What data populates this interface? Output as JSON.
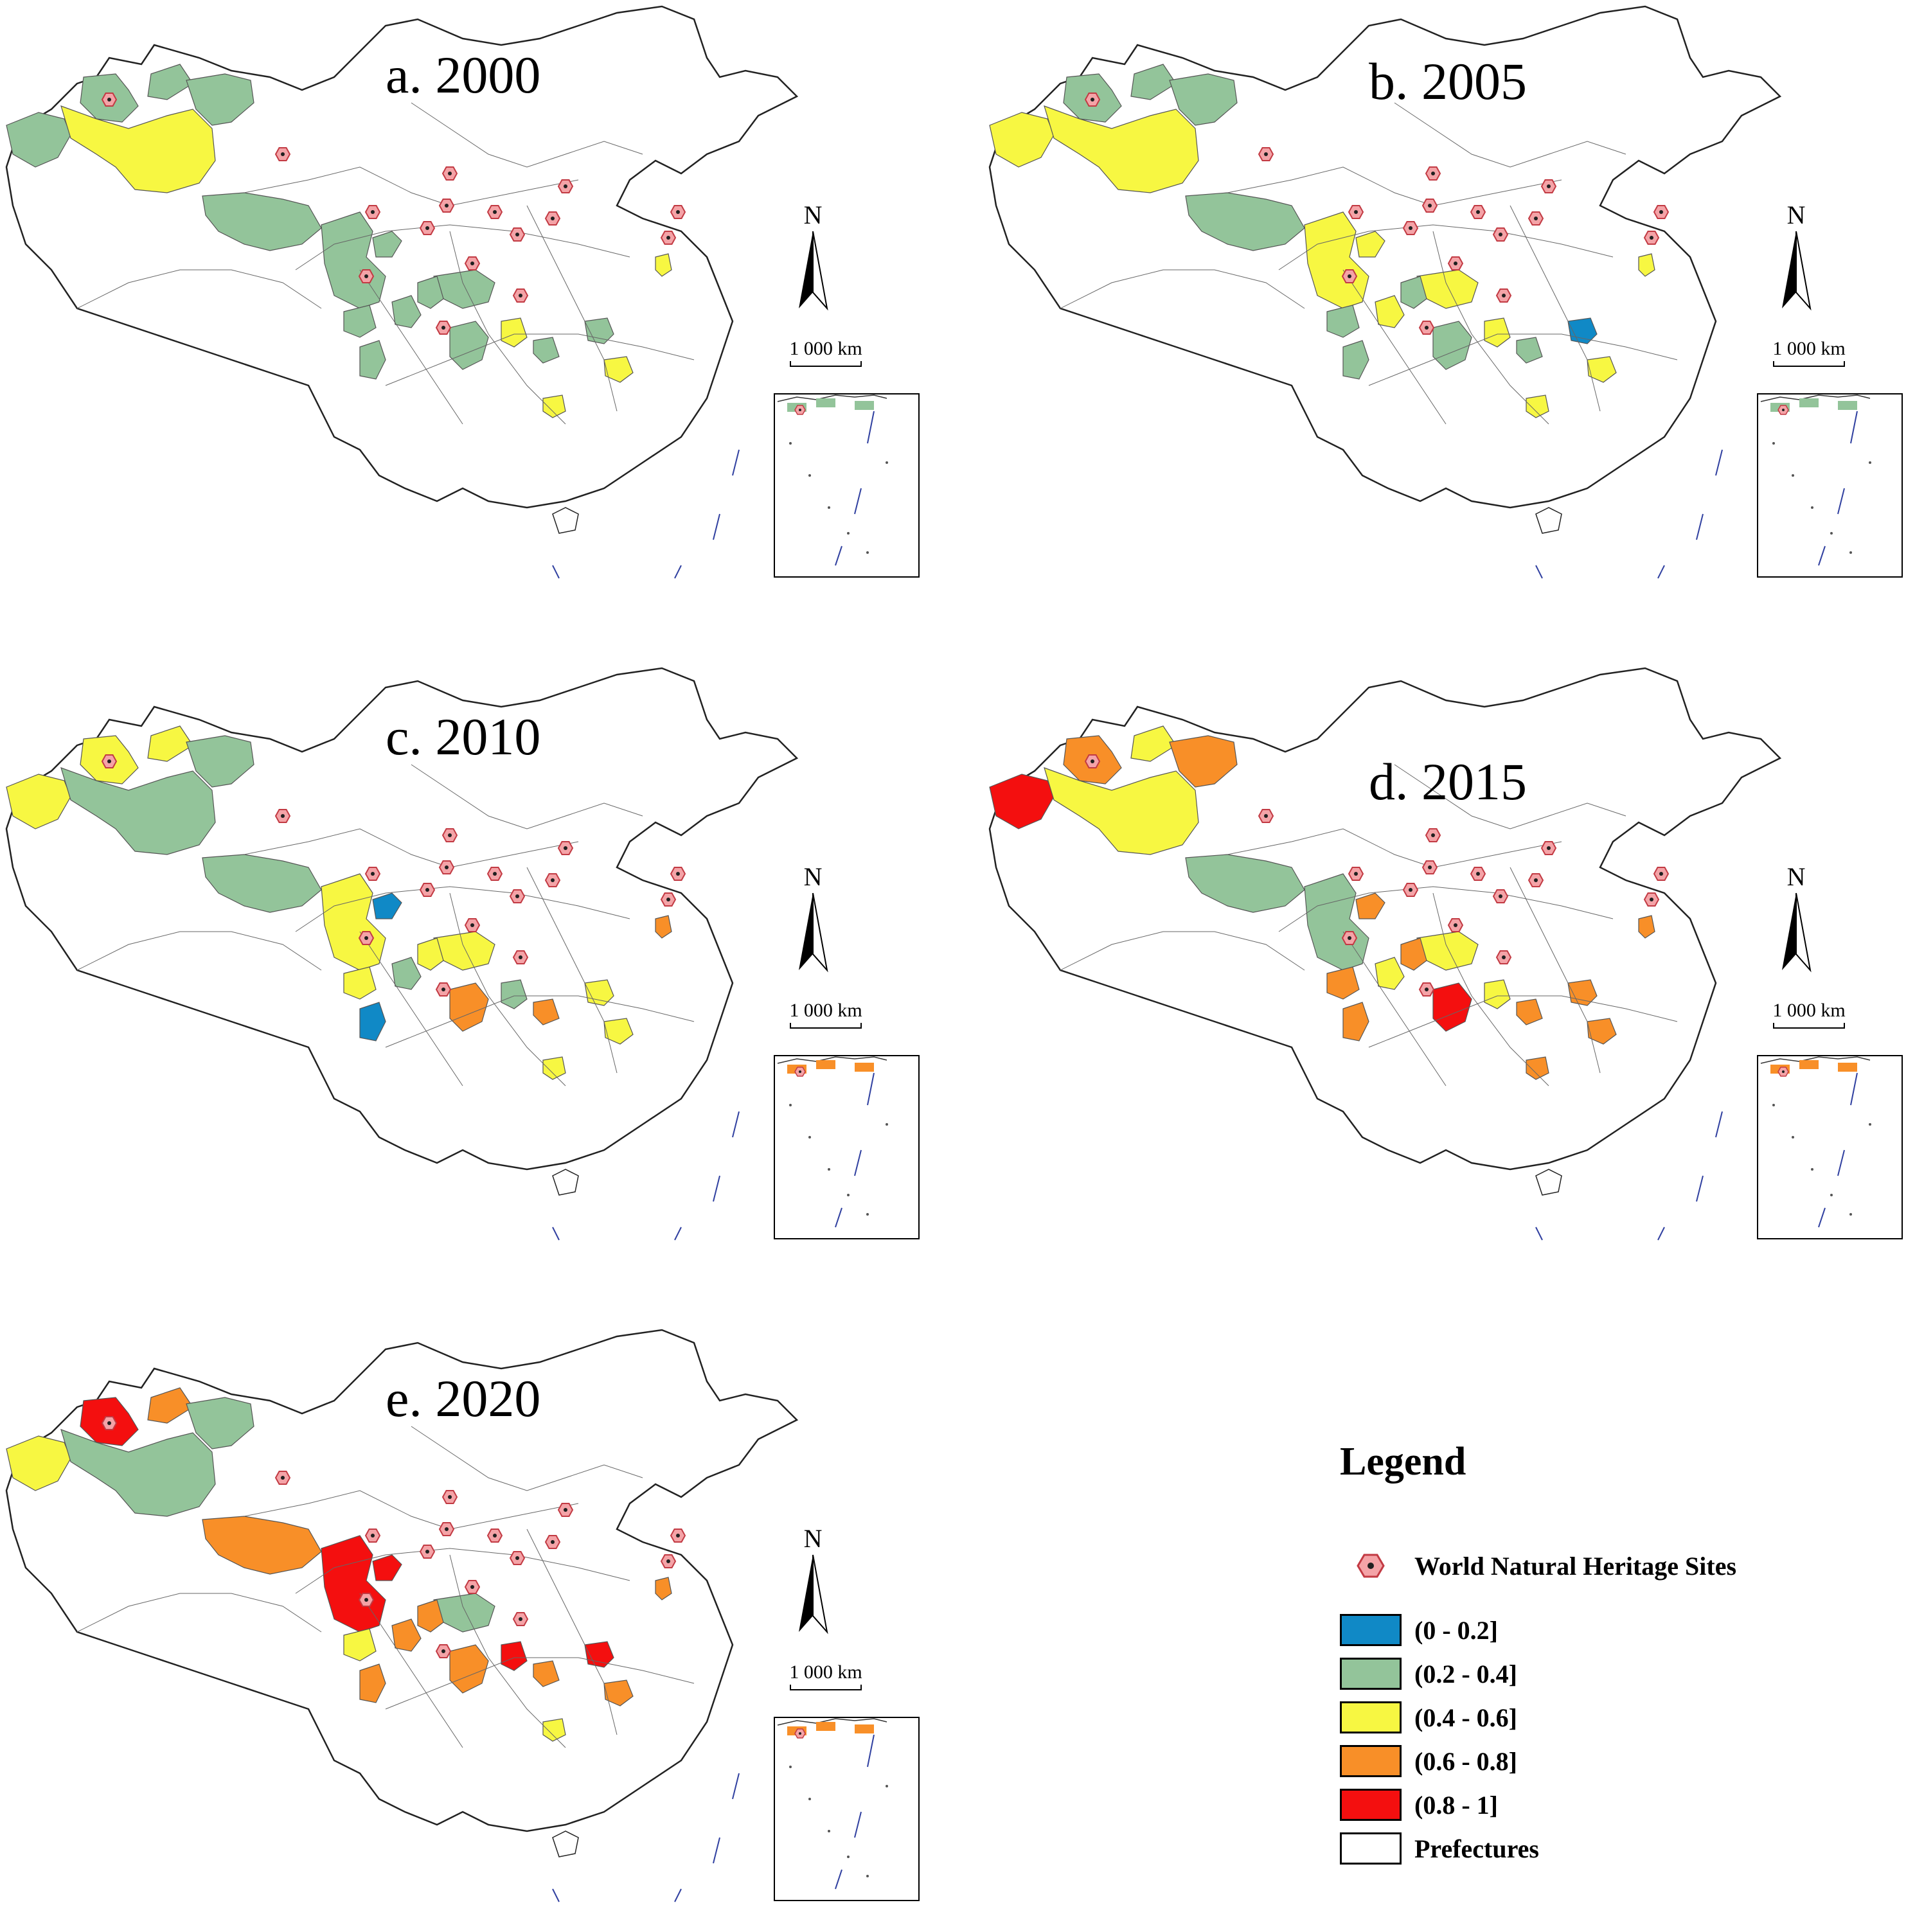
{
  "colors": {
    "c0_02": "#1089c6",
    "c02_04": "#93c49a",
    "c04_06": "#f7f742",
    "c06_08": "#f88f28",
    "c08_1": "#f40f0f",
    "outline": "#222222",
    "site_fill": "#f4a3a7",
    "site_stroke": "#c23a43",
    "site_dot": "#202020"
  },
  "panels": [
    {
      "id": "a",
      "title": "a. 2000",
      "scale_label": "1 000 km",
      "north_label": "N",
      "regions": {
        "xinjiang_north": "c02_04",
        "xinjiang_west": "c02_04",
        "xinjiang_center": "c04_06",
        "xinjiang_east": "c02_04",
        "altai": "c02_04",
        "qinghai": "c02_04",
        "sichuan_west": "c02_04",
        "sichuan_east": "c02_04",
        "yunnan_nw": "c02_04",
        "yunnan_s": "c02_04",
        "hubei": "c02_04",
        "hunan": "c02_04",
        "guizhou": "c04_06",
        "guangxi": "c02_04",
        "anhui": "c02_04",
        "jiangxi": "c04_06",
        "zhejiang": "c04_06",
        "fujian": "c04_06",
        "yunnan_c": "c02_04",
        "sichuan_s": "c02_04"
      }
    },
    {
      "id": "b",
      "title": "b. 2005",
      "scale_label": "1 000 km",
      "north_label": "N",
      "regions": {
        "xinjiang_north": "c02_04",
        "xinjiang_west": "c04_06",
        "xinjiang_center": "c04_06",
        "xinjiang_east": "c02_04",
        "altai": "c02_04",
        "qinghai": "c02_04",
        "sichuan_west": "c04_06",
        "sichuan_east": "c04_06",
        "yunnan_nw": "c02_04",
        "yunnan_s": "c02_04",
        "hubei": "c04_06",
        "hunan": "c02_04",
        "guizhou": "c04_06",
        "guangxi": "c02_04",
        "anhui": "c0_02",
        "jiangxi": "c04_06",
        "zhejiang": "c04_06",
        "fujian": "c04_06",
        "yunnan_c": "c04_06",
        "sichuan_s": "c02_04"
      }
    },
    {
      "id": "c",
      "title": "c. 2010",
      "scale_label": "1 000 km",
      "north_label": "N",
      "regions": {
        "xinjiang_north": "c04_06",
        "xinjiang_west": "c04_06",
        "xinjiang_center": "c02_04",
        "xinjiang_east": "c04_06",
        "altai": "c02_04",
        "qinghai": "c02_04",
        "sichuan_west": "c04_06",
        "sichuan_east": "c0_02",
        "yunnan_nw": "c04_06",
        "yunnan_s": "c0_02",
        "hubei": "c04_06",
        "hunan": "c06_08",
        "guizhou": "c02_04",
        "guangxi": "c06_08",
        "anhui": "c04_06",
        "jiangxi": "c04_06",
        "zhejiang": "c06_08",
        "fujian": "c04_06",
        "yunnan_c": "c02_04",
        "sichuan_s": "c04_06"
      }
    },
    {
      "id": "d",
      "title": "d. 2015",
      "scale_label": "1 000 km",
      "north_label": "N",
      "regions": {
        "xinjiang_north": "c06_08",
        "xinjiang_west": "c08_1",
        "xinjiang_center": "c04_06",
        "xinjiang_east": "c04_06",
        "altai": "c06_08",
        "qinghai": "c02_04",
        "sichuan_west": "c02_04",
        "sichuan_east": "c06_08",
        "yunnan_nw": "c06_08",
        "yunnan_s": "c06_08",
        "hubei": "c04_06",
        "hunan": "c08_1",
        "guizhou": "c04_06",
        "guangxi": "c06_08",
        "anhui": "c06_08",
        "jiangxi": "c06_08",
        "zhejiang": "c06_08",
        "fujian": "c06_08",
        "yunnan_c": "c04_06",
        "sichuan_s": "c06_08"
      }
    },
    {
      "id": "e",
      "title": "e. 2020",
      "scale_label": "1 000 km",
      "north_label": "N",
      "regions": {
        "xinjiang_north": "c08_1",
        "xinjiang_west": "c04_06",
        "xinjiang_center": "c02_04",
        "xinjiang_east": "c06_08",
        "altai": "c02_04",
        "qinghai": "c06_08",
        "sichuan_west": "c08_1",
        "sichuan_east": "c08_1",
        "yunnan_nw": "c04_06",
        "yunnan_s": "c06_08",
        "hubei": "c02_04",
        "hunan": "c06_08",
        "guizhou": "c08_1",
        "guangxi": "c06_08",
        "anhui": "c08_1",
        "jiangxi": "c06_08",
        "zhejiang": "c06_08",
        "fujian": "c04_06",
        "yunnan_c": "c06_08",
        "sichuan_s": "c06_08"
      }
    }
  ],
  "legend": {
    "title": "Legend",
    "site_label": "World Natural Heritage Sites",
    "items": [
      {
        "label": "(0 - 0.2]",
        "color_key": "c0_02"
      },
      {
        "label": "(0.2 - 0.4]",
        "color_key": "c02_04"
      },
      {
        "label": "(0.4 - 0.6]",
        "color_key": "c04_06"
      },
      {
        "label": "(0.6 - 0.8]",
        "color_key": "c06_08"
      },
      {
        "label": "(0.8 - 1]",
        "color_key": "c08_1"
      },
      {
        "label": "Prefectures",
        "color_key": "none"
      }
    ]
  }
}
